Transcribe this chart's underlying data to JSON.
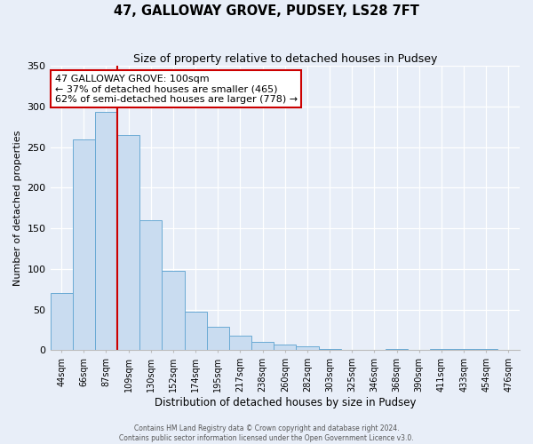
{
  "title": "47, GALLOWAY GROVE, PUDSEY, LS28 7FT",
  "subtitle": "Size of property relative to detached houses in Pudsey",
  "xlabel": "Distribution of detached houses by size in Pudsey",
  "ylabel": "Number of detached properties",
  "bar_labels": [
    "44sqm",
    "66sqm",
    "87sqm",
    "109sqm",
    "130sqm",
    "152sqm",
    "174sqm",
    "195sqm",
    "217sqm",
    "238sqm",
    "260sqm",
    "282sqm",
    "303sqm",
    "325sqm",
    "346sqm",
    "368sqm",
    "390sqm",
    "411sqm",
    "433sqm",
    "454sqm",
    "476sqm"
  ],
  "bar_values": [
    70,
    260,
    293,
    265,
    160,
    98,
    48,
    29,
    18,
    10,
    7,
    5,
    2,
    0,
    0,
    2,
    0,
    2,
    2,
    2,
    1
  ],
  "bar_color": "#c9dcf0",
  "bar_edge_color": "#6aaad4",
  "ylim": [
    0,
    350
  ],
  "yticks": [
    0,
    50,
    100,
    150,
    200,
    250,
    300,
    350
  ],
  "red_line_x": 2.5,
  "marker_label": "47 GALLOWAY GROVE: 100sqm",
  "annotation_line1": "← 37% of detached houses are smaller (465)",
  "annotation_line2": "62% of semi-detached houses are larger (778) →",
  "box_color": "#cc0000",
  "footer_line1": "Contains HM Land Registry data © Crown copyright and database right 2024.",
  "footer_line2": "Contains public sector information licensed under the Open Government Licence v3.0.",
  "background_color": "#e8eef8"
}
